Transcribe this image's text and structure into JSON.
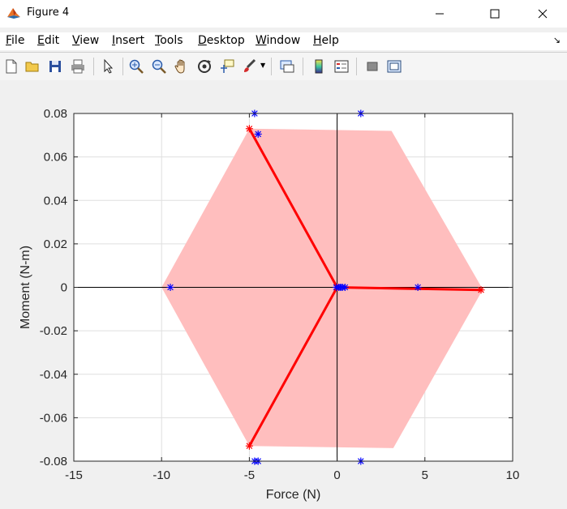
{
  "window": {
    "title": "Figure 4",
    "minimize_icon": "minimize-icon",
    "maximize_icon": "maximize-icon",
    "close_icon": "close-icon"
  },
  "menu": [
    {
      "label": "File",
      "key": "F",
      "rest": "ile"
    },
    {
      "label": "Edit",
      "key": "E",
      "rest": "dit"
    },
    {
      "label": "View",
      "key": "V",
      "rest": "iew"
    },
    {
      "label": "Insert",
      "key": "I",
      "rest": "nsert"
    },
    {
      "label": "Tools",
      "key": "T",
      "rest": "ools"
    },
    {
      "label": "Desktop",
      "key": "D",
      "rest": "esktop"
    },
    {
      "label": "Window",
      "key": "W",
      "rest": "indow"
    },
    {
      "label": "Help",
      "key": "H",
      "rest": "elp"
    }
  ],
  "toolbar": [
    "new-figure-icon",
    "open-file-icon",
    "save-icon",
    "print-icon",
    "select-arrow-icon",
    "zoom-in-icon",
    "zoom-out-icon",
    "pan-hand-icon",
    "rotate-3d-icon",
    "data-cursor-icon",
    "brush-icon",
    "link-plot-icon",
    "colorbar-icon",
    "legend-icon",
    "hide-plot-tools-icon",
    "show-plot-tools-icon"
  ],
  "colors": {
    "hull_fill": "#ffbebe",
    "lines": "#ff0000",
    "blue_points": "#0000ff",
    "axis": "#262626",
    "grid": "#dfdfdf"
  },
  "chart_data": {
    "type": "scatter",
    "xlabel": "Force (N)",
    "ylabel": "Moment (N-m)",
    "xlim": [
      -15,
      10
    ],
    "ylim": [
      -0.08,
      0.08
    ],
    "xticks": [
      -15,
      -10,
      -5,
      0,
      5,
      10
    ],
    "yticks": [
      -0.08,
      -0.06,
      -0.04,
      -0.02,
      0,
      0.02,
      0.04,
      0.06,
      0.08
    ],
    "xtick_labels": [
      "-15",
      "-10",
      "-5",
      "0",
      "5",
      "10"
    ],
    "ytick_labels": [
      "-0.08",
      "-0.06",
      "-0.04",
      "-0.02",
      "0",
      "0.02",
      "0.04",
      "0.06",
      "0.08"
    ],
    "grid": true,
    "hull": [
      [
        -5.0,
        0.073
      ],
      [
        3.1,
        0.072
      ],
      [
        8.3,
        -0.001
      ],
      [
        3.2,
        -0.074
      ],
      [
        -5.0,
        -0.073
      ],
      [
        -10.0,
        0.0
      ]
    ],
    "red_lines": [
      [
        [
          0,
          0
        ],
        [
          -5.0,
          0.073
        ]
      ],
      [
        [
          0,
          0
        ],
        [
          8.2,
          -0.0012
        ]
      ],
      [
        [
          0,
          0
        ],
        [
          -5.0,
          -0.073
        ]
      ]
    ],
    "red_points": [
      [
        -5.0,
        0.073
      ],
      [
        8.2,
        -0.0012
      ],
      [
        -5.0,
        -0.073
      ],
      [
        0,
        0
      ]
    ],
    "blue_points": [
      [
        -4.7,
        0.08
      ],
      [
        1.35,
        0.08
      ],
      [
        -4.5,
        0.0705
      ],
      [
        -9.5,
        0.0
      ],
      [
        4.6,
        0.0
      ],
      [
        0.1,
        0.0
      ],
      [
        0.3,
        0.0
      ],
      [
        0.45,
        0.0
      ],
      [
        -0.05,
        0.0
      ],
      [
        0.2,
        0.0
      ],
      [
        -4.5,
        -0.08
      ],
      [
        -4.7,
        -0.08
      ],
      [
        1.35,
        -0.08
      ]
    ]
  }
}
